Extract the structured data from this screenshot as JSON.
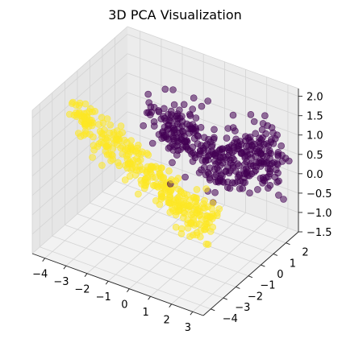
{
  "chart_data": {
    "type": "scatter",
    "title": "3D PCA Visualization",
    "xlabel": "",
    "ylabel": "",
    "zlabel": "",
    "xlim": [
      -4.6,
      3.5
    ],
    "ylim": [
      -4.6,
      3.0
    ],
    "zlim": [
      -1.5,
      2.2
    ],
    "x_ticks": [
      "−4",
      "−3",
      "−2",
      "−1",
      "0",
      "1",
      "2",
      "3"
    ],
    "x_tick_values": [
      -4,
      -3,
      -2,
      -1,
      0,
      1,
      2,
      3
    ],
    "y_ticks": [
      "−4",
      "−3",
      "−2",
      "−1",
      "0",
      "1",
      "2"
    ],
    "y_tick_values": [
      -4,
      -3,
      -2,
      -1,
      0,
      1,
      2
    ],
    "z_ticks": [
      "−1.5",
      "−1.0",
      "−0.5",
      "0.0",
      "0.5",
      "1.0",
      "1.5",
      "2.0"
    ],
    "z_tick_values": [
      -1.5,
      -1.0,
      -0.5,
      0.0,
      0.5,
      1.0,
      1.5,
      2.0
    ],
    "grid": true,
    "colormap": "viridis",
    "series": [
      {
        "color": "#440154",
        "color_value": 0,
        "cluster_centers": [
          [
            1.2,
            1.5,
            0.2
          ],
          [
            0.5,
            1.0,
            0.4
          ],
          [
            -0.3,
            0.5,
            0.9
          ],
          [
            -1.0,
            0.2,
            1.2
          ],
          [
            1.8,
            2.0,
            0.6
          ],
          [
            2.3,
            2.6,
            0.2
          ]
        ],
        "spread": [
          0.45,
          0.4,
          0.35
        ],
        "count": 380
      },
      {
        "color": "#fde725",
        "color_value": 1,
        "cluster_centers": [
          [
            -3.8,
            -1.8,
            1.3
          ],
          [
            -3.0,
            -1.2,
            0.8
          ],
          [
            -2.2,
            -0.8,
            0.3
          ],
          [
            -1.4,
            -0.5,
            -0.1
          ],
          [
            -0.6,
            -0.3,
            -0.4
          ],
          [
            0.2,
            -0.2,
            -0.7
          ],
          [
            0.8,
            0.1,
            -0.9
          ]
        ],
        "spread": [
          0.35,
          0.3,
          0.25
        ],
        "count": 340
      }
    ]
  }
}
